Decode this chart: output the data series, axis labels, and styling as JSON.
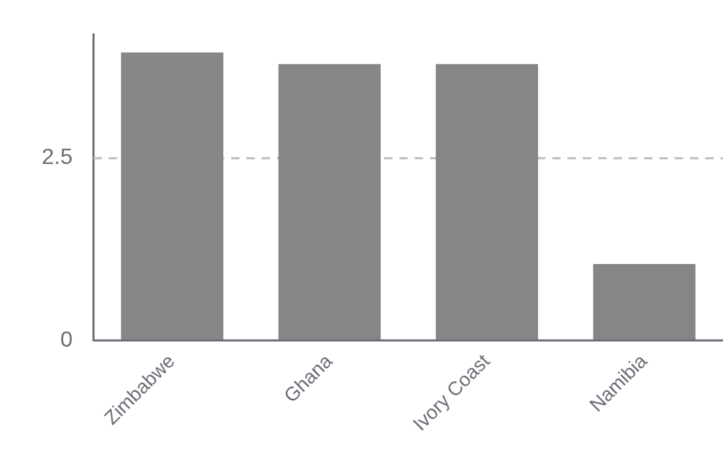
{
  "chart_data": {
    "type": "bar",
    "categories": [
      "Zimbabwe",
      "Ghana",
      "Ivory Coast",
      "Namibia"
    ],
    "values": [
      3.95,
      3.79,
      3.79,
      1.05
    ],
    "color": "#868686",
    "ylim": [
      0,
      4.2
    ],
    "yticks": [
      0,
      2.5
    ],
    "grid": "y",
    "line_style": "dashed",
    "legend": false
  }
}
